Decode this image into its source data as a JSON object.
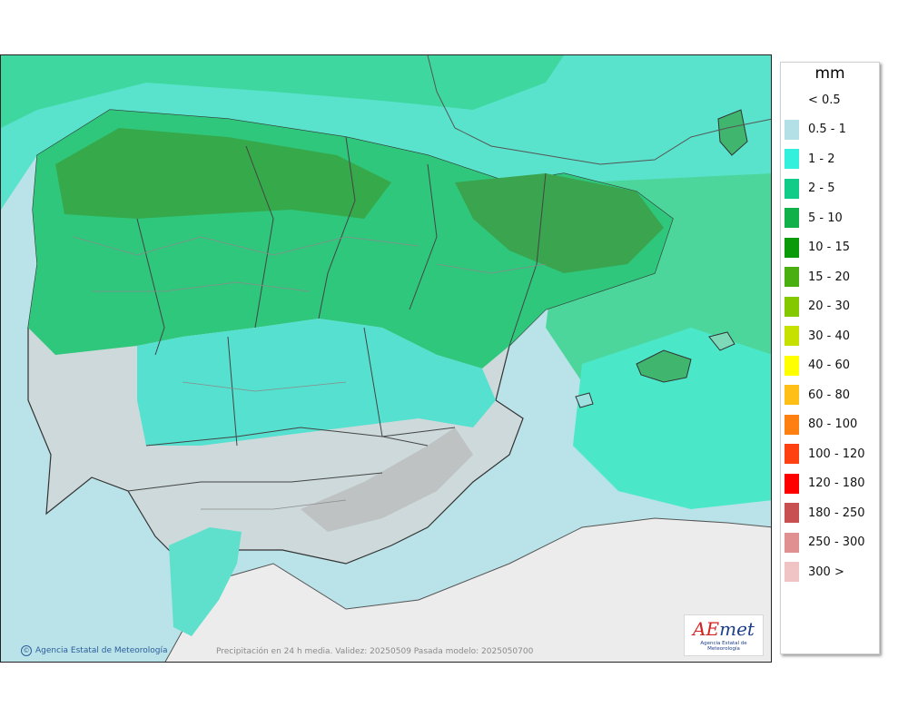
{
  "map": {
    "credit": "Agencia Estatal de Meteorología",
    "validity_text": "Precipitación en 24 h media. Validez: 20250509 Pasada modelo: 2025050700",
    "logo": {
      "word_a": "A",
      "word_e": "E",
      "word_rest": "met",
      "subtitle": "Agencia Estatal de Meteorología"
    }
  },
  "legend": {
    "unit": "mm",
    "entries": [
      {
        "label": "< 0.5",
        "color": "#ffffff"
      },
      {
        "label": "0.5 - 1",
        "color": "#b2e0e6"
      },
      {
        "label": "1 - 2",
        "color": "#33f0dc"
      },
      {
        "label": "2 - 5",
        "color": "#11cc88"
      },
      {
        "label": "5 - 10",
        "color": "#10b04a"
      },
      {
        "label": "10 - 15",
        "color": "#0a9a0a"
      },
      {
        "label": "15 - 20",
        "color": "#4ab012"
      },
      {
        "label": "20 - 30",
        "color": "#84c800"
      },
      {
        "label": "30 - 40",
        "color": "#c6e000"
      },
      {
        "label": "40 - 60",
        "color": "#ffff00"
      },
      {
        "label": "60 - 80",
        "color": "#ffbf16"
      },
      {
        "label": "80 - 100",
        "color": "#ff8010"
      },
      {
        "label": "100 - 120",
        "color": "#ff4010"
      },
      {
        "label": "120 - 180",
        "color": "#ff0000"
      },
      {
        "label": "180 - 250",
        "color": "#c85050"
      },
      {
        "label": "250 - 300",
        "color": "#e09090"
      },
      {
        "label": "300 >",
        "color": "#f0c4c4"
      }
    ]
  }
}
